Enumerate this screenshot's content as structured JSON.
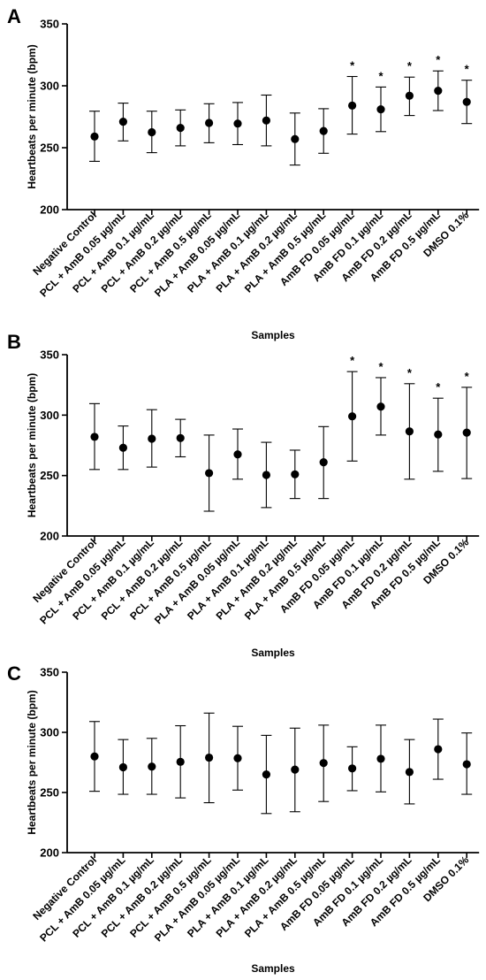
{
  "chart_data": [
    {
      "panel": "A",
      "type": "scatter",
      "categories": [
        "Negative Control",
        "PCL + AmB 0.05 µg/mL",
        "PCL + AmB 0.1 µg/mL",
        "PCL + AmB 0.2 µg/mL",
        "PCL + AmB 0.5 µg/mL",
        "PLA + AmB 0.05 µg/mL",
        "PLA + AmB 0.1 µg/mL",
        "PLA + AmB 0.2 µg/mL",
        "PLA + AmB 0.5 µg/mL",
        "AmB FD 0.05 µg/mL",
        "AmB FD 0.1 µg/mL",
        "AmB FD 0.2 µg/mL",
        "AmB FD 0.5 µg/mL",
        "DMSO 0.1%"
      ],
      "values": [
        259,
        271,
        262.5,
        266,
        270,
        269.5,
        272,
        257,
        263.5,
        284,
        281,
        292,
        296,
        287
      ],
      "error_low": [
        239,
        255.5,
        246,
        251.5,
        254,
        252.5,
        251.5,
        236,
        245.5,
        261,
        263,
        276,
        280,
        269.5
      ],
      "error_high": [
        279.5,
        286,
        279.5,
        280.5,
        285.5,
        286.5,
        292.5,
        278,
        281.5,
        307.5,
        299,
        307,
        312,
        304.5
      ],
      "significance": [
        "",
        "",
        "",
        "",
        "",
        "",
        "",
        "",
        "",
        "*",
        "*",
        "*",
        "*",
        "*"
      ],
      "xlabel": "Samples",
      "ylabel": "Heartbeats per minute (bpm)",
      "ylim": [
        200,
        350
      ],
      "yticks": [
        200,
        250,
        300,
        350
      ]
    },
    {
      "panel": "B",
      "type": "scatter",
      "categories": [
        "Negative Control",
        "PCL + AmB 0.05 µg/mL",
        "PCL + AmB 0.1 µg/mL",
        "PCL + AmB 0.2 µg/mL",
        "PCL + AmB 0.5 µg/mL",
        "PLA + AmB 0.05 µg/mL",
        "PLA + AmB 0.1 µg/mL",
        "PLA + AmB 0.2 µg/mL",
        "PLA + AmB 0.5 µg/mL",
        "AmB FD 0.05 µg/mL",
        "AmB FD 0.1 µg/mL",
        "AmB FD 0.2 µg/mL",
        "AmB FD 0.5 µg/mL",
        "DMSO 0.1%"
      ],
      "values": [
        282,
        273,
        280.5,
        281,
        252,
        267.5,
        250.5,
        251,
        261,
        299,
        307,
        286.5,
        284,
        285.5
      ],
      "error_low": [
        255,
        255,
        257,
        265.5,
        220.5,
        247,
        223.5,
        231,
        231,
        262,
        283.5,
        247,
        253.5,
        247.5
      ],
      "error_high": [
        309.5,
        291,
        304.5,
        296.5,
        283.5,
        288.5,
        277.5,
        271,
        290.5,
        336,
        331,
        326,
        314,
        323
      ],
      "significance": [
        "",
        "",
        "",
        "",
        "",
        "",
        "",
        "",
        "",
        "*",
        "*",
        "*",
        "*",
        "*"
      ],
      "xlabel": "Samples",
      "ylabel": "Heartbeats per minute (bpm)",
      "ylim": [
        200,
        350
      ],
      "yticks": [
        200,
        250,
        300,
        350
      ]
    },
    {
      "panel": "C",
      "type": "scatter",
      "categories": [
        "Negative Control",
        "PCL + AmB 0.05 µg/mL",
        "PCL + AmB 0.1 µg/mL",
        "PCL + AmB 0.2 µg/mL",
        "PCL + AmB 0.5 µg/mL",
        "PLA + AmB 0.05 µg/mL",
        "PLA + AmB 0.1 µg/mL",
        "PLA + AmB 0.2 µg/mL",
        "PLA + AmB 0.5 µg/mL",
        "AmB FD 0.05 µg/mL",
        "AmB FD 0.1 µg/mL",
        "AmB FD 0.2 µg/mL",
        "AmB FD 0.5 µg/mL",
        "DMSO 0.1%"
      ],
      "values": [
        280,
        271,
        271.5,
        275.5,
        279,
        278.5,
        265,
        269,
        274.5,
        270,
        278,
        267,
        286,
        273.5
      ],
      "error_low": [
        251,
        248.5,
        248.5,
        245.5,
        241.5,
        252,
        232.5,
        234,
        242.5,
        251.5,
        250.5,
        240.5,
        261,
        248.5
      ],
      "error_high": [
        309,
        294,
        295,
        305.5,
        316,
        305,
        297.5,
        303.5,
        306,
        288,
        306,
        294,
        311,
        299.5
      ],
      "significance": [
        "",
        "",
        "",
        "",
        "",
        "",
        "",
        "",
        "",
        "",
        "",
        "",
        "",
        ""
      ],
      "xlabel": "Samples",
      "ylabel": "Heartbeats per minute (bpm)",
      "ylim": [
        200,
        350
      ],
      "yticks": [
        200,
        250,
        300,
        350
      ]
    }
  ],
  "colors": {
    "marker": "#000000",
    "axis": "#000000"
  }
}
